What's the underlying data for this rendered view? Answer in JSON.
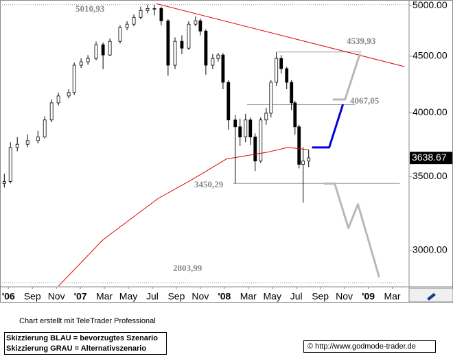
{
  "chart_data": {
    "type": "candlestick",
    "log_scale": true,
    "ylim": [
      2780,
      5060
    ],
    "yticks": [
      {
        "value": 3000,
        "label": "3000.00"
      },
      {
        "value": 3500,
        "label": "3500.00"
      },
      {
        "value": 4000,
        "label": "4000.00"
      },
      {
        "value": 4500,
        "label": "4500.00"
      },
      {
        "value": 5000,
        "label": "5000.00"
      }
    ],
    "xlim": [
      -0.7,
      33.4
    ],
    "xticks": [
      {
        "value": 0,
        "label": "'06"
      },
      {
        "value": 2,
        "label": "Sep"
      },
      {
        "value": 4,
        "label": "Nov"
      },
      {
        "value": 6,
        "label": "'07"
      },
      {
        "value": 8,
        "label": "Mar"
      },
      {
        "value": 10,
        "label": "May"
      },
      {
        "value": 12,
        "label": "Jul"
      },
      {
        "value": 14,
        "label": "Sep"
      },
      {
        "value": 16,
        "label": "Nov"
      },
      {
        "value": 18,
        "label": "'08"
      },
      {
        "value": 20,
        "label": "Mar"
      },
      {
        "value": 22,
        "label": "May"
      },
      {
        "value": 24,
        "label": "Jul"
      },
      {
        "value": 26,
        "label": "Sep"
      },
      {
        "value": 28,
        "label": "Nov"
      },
      {
        "value": 30,
        "label": "'09"
      },
      {
        "value": 32,
        "label": "Mar"
      }
    ],
    "candles": {
      "up_color": "#ffffff",
      "down_color": "#000000",
      "x": [
        -0.34,
        0.17,
        0.74,
        1.6,
        2.46,
        3.03,
        3.6,
        4.17,
        5.03,
        5.49,
        6.06,
        6.63,
        7.31,
        7.89,
        8.46,
        9.31,
        9.89,
        10.46,
        11.03,
        11.6,
        12.17,
        12.74,
        13.31,
        13.89,
        14.46,
        15.03,
        15.6,
        16,
        16.46,
        17.03,
        17.49,
        17.89,
        18.34,
        18.91,
        19.31,
        19.77,
        20.17,
        20.57,
        21.03,
        21.49,
        21.89,
        22.34,
        22.74,
        23.2,
        23.6,
        23.89,
        24.23,
        24.57,
        25.03
      ],
      "open": [
        3450,
        3464,
        3719,
        3744,
        3773,
        3801,
        3939,
        4082,
        4141,
        4171,
        4416,
        4447,
        4479,
        4609,
        4511,
        4642,
        4777,
        4811,
        4880,
        4950,
        4971,
        4971,
        4845,
        4416,
        4642,
        4576,
        4811,
        4845,
        4742,
        4416,
        4479,
        4511,
        4261,
        3939,
        3883,
        3801,
        3939,
        3801,
        3615,
        3939,
        3995,
        4261,
        4479,
        4384,
        4261,
        4082,
        3883,
        3590,
        3615
      ],
      "high": [
        3520,
        3760,
        3800,
        3820,
        3850,
        3970,
        4110,
        4170,
        4200,
        4440,
        4480,
        4510,
        4640,
        4630,
        4670,
        4800,
        4840,
        4910,
        4990,
        5011,
        5010,
        4990,
        4860,
        4680,
        4700,
        4840,
        4890,
        4870,
        4760,
        4520,
        4530,
        4530,
        4280,
        3980,
        3950,
        3990,
        3960,
        3830,
        3960,
        4040,
        4280,
        4540,
        4510,
        4400,
        4280,
        4100,
        3900,
        3720,
        3700
      ],
      "low": [
        3420,
        3450,
        3690,
        3720,
        3750,
        3790,
        3920,
        4060,
        4120,
        4150,
        4390,
        4420,
        4460,
        4380,
        4500,
        4620,
        4750,
        4790,
        4860,
        4920,
        4900,
        4800,
        4320,
        4380,
        4520,
        4560,
        4790,
        4700,
        4330,
        4380,
        4450,
        4200,
        3860,
        3450,
        3730,
        3760,
        3740,
        3540,
        3600,
        3900,
        3960,
        4230,
        4340,
        4200,
        4020,
        3820,
        3560,
        3314,
        3570
      ],
      "close": [
        3464,
        3719,
        3744,
        3773,
        3801,
        3939,
        4082,
        4141,
        4171,
        4416,
        4447,
        4479,
        4609,
        4511,
        4642,
        4777,
        4811,
        4880,
        4950,
        4971,
        4971,
        4845,
        4416,
        4642,
        4576,
        4811,
        4845,
        4742,
        4416,
        4479,
        4511,
        4261,
        3939,
        3883,
        3801,
        3939,
        3801,
        3615,
        3939,
        3995,
        4261,
        4479,
        4384,
        4261,
        4082,
        3883,
        3590,
        3615,
        3639
      ]
    },
    "lines": [
      {
        "color": "#e00000",
        "width": 1,
        "x": [
          4.17,
          7.89,
          12.46,
          15.31,
          18.17,
          21.6,
          23.31,
          25.03
        ],
        "y": [
          2784,
          3067,
          3342,
          3478,
          3630,
          3683,
          3719,
          3701
        ]
      },
      {
        "color": "#e00000",
        "width": 1,
        "x": [
          12.34,
          33.03
        ],
        "y": [
          5021,
          4403
        ]
      },
      {
        "color": "#0000e0",
        "width": 3,
        "x": [
          25.31,
          26.74,
          27.89
        ],
        "y": [
          3719,
          3719,
          4070
        ]
      },
      {
        "color": "#b8b8b8",
        "width": 3,
        "x": [
          27.03,
          28.06,
          29.31
        ],
        "y": [
          4111,
          4111,
          4524
        ]
      },
      {
        "color": "#b8b8b8",
        "width": 3,
        "x": [
          26.29,
          27.2,
          28.34,
          29.14,
          30.91
        ],
        "y": [
          3449,
          3449,
          3143,
          3304,
          2836
        ]
      }
    ],
    "levels": [
      {
        "value": 5010.93,
        "label": "5010,93",
        "x": [
          -0.7,
          33.4
        ]
      },
      {
        "value": 4539.93,
        "label": "4539,93",
        "x": [
          22.46,
          29.43
        ]
      },
      {
        "value": 4067.05,
        "label": "4067,05",
        "x": [
          19.89,
          28.91
        ]
      },
      {
        "value": 3450.29,
        "label": "3450,29",
        "x": [
          18.74,
          32.63
        ]
      },
      {
        "value": 2803.99,
        "label": "2803,99",
        "x": [
          -0.7,
          33.03
        ]
      }
    ],
    "last_price": 3638.67
  },
  "footer": {
    "credit": "Chart erstellt mit TeleTrader Professional",
    "legend": [
      "Skizzierung BLAU = bevorzugtes Szenario",
      "Skizzierung GRAU = Alternativszenario"
    ],
    "url": "© http://www.godmode-trader.de"
  }
}
